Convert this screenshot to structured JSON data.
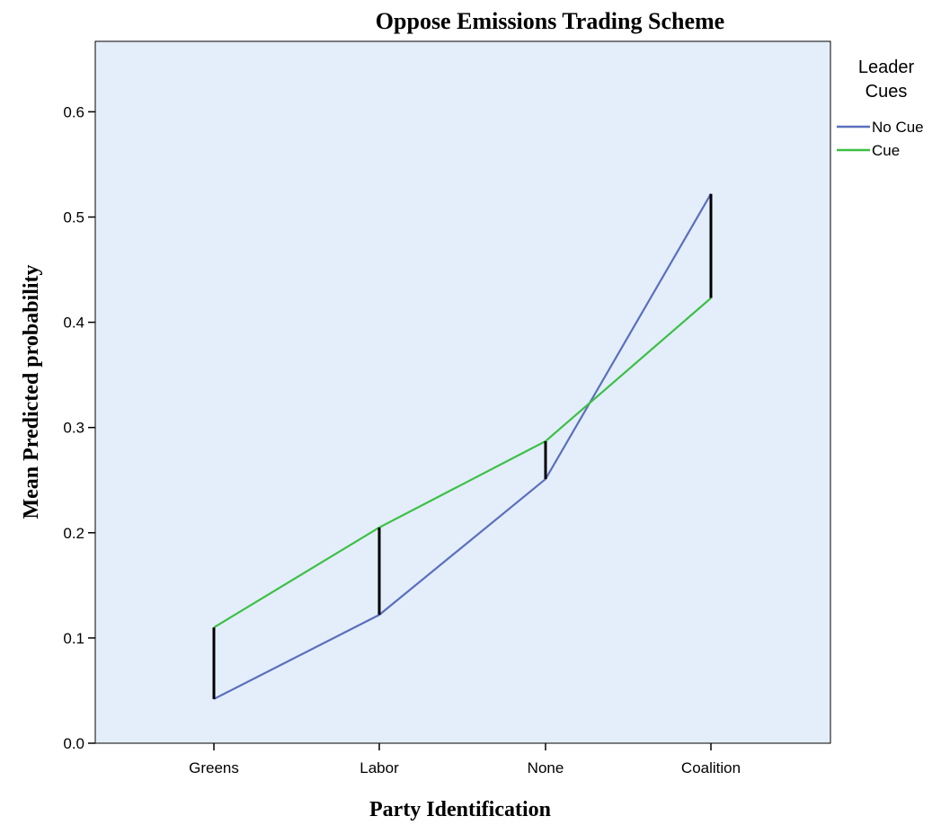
{
  "chart_data": {
    "type": "line",
    "title": "Oppose Emissions Trading Scheme",
    "xlabel": "Party Identification",
    "ylabel": "Mean Predicted probability",
    "categories": [
      "Greens",
      "Labor",
      "None",
      "Coalition"
    ],
    "ylim": [
      0.0,
      0.67
    ],
    "yticks": [
      "0.0",
      "0.1",
      "0.2",
      "0.3",
      "0.4",
      "0.5",
      "0.6"
    ],
    "grid": false,
    "background_color": "#e3eefa",
    "series": [
      {
        "name": "No Cue",
        "color": "#5b6fbe",
        "values": [
          0.042,
          0.122,
          0.251,
          0.522
        ]
      },
      {
        "name": "Cue",
        "color": "#3cbf45",
        "values": [
          0.11,
          0.205,
          0.287,
          0.423
        ]
      }
    ],
    "difference_bars": {
      "color": "#000000",
      "note": ""
    },
    "legend": {
      "title_line1": "Leader",
      "title_line2": "Cues",
      "position": "top-right"
    }
  }
}
